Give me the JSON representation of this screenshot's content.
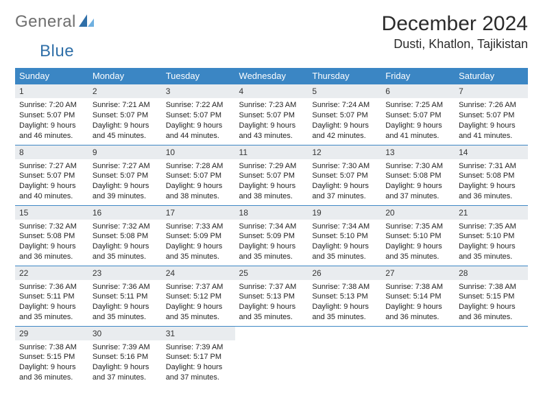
{
  "brand": {
    "word1": "General",
    "word2": "Blue"
  },
  "title": "December 2024",
  "location": "Dusti, Khatlon, Tajikistan",
  "colors": {
    "header_bg": "#3b86c4",
    "header_text": "#ffffff",
    "daynum_bg": "#e9ecef",
    "rule": "#3b86c4",
    "brand_gray": "#6e6e6e",
    "brand_blue": "#2f6fa8"
  },
  "typography": {
    "title_fontsize": 30,
    "location_fontsize": 18,
    "dayheader_fontsize": 13,
    "daynum_fontsize": 12,
    "cell_fontsize": 11
  },
  "day_headers": [
    "Sunday",
    "Monday",
    "Tuesday",
    "Wednesday",
    "Thursday",
    "Friday",
    "Saturday"
  ],
  "weeks": [
    [
      {
        "n": "1",
        "sunrise": "7:20 AM",
        "sunset": "5:07 PM",
        "dl": "9 hours and 46 minutes."
      },
      {
        "n": "2",
        "sunrise": "7:21 AM",
        "sunset": "5:07 PM",
        "dl": "9 hours and 45 minutes."
      },
      {
        "n": "3",
        "sunrise": "7:22 AM",
        "sunset": "5:07 PM",
        "dl": "9 hours and 44 minutes."
      },
      {
        "n": "4",
        "sunrise": "7:23 AM",
        "sunset": "5:07 PM",
        "dl": "9 hours and 43 minutes."
      },
      {
        "n": "5",
        "sunrise": "7:24 AM",
        "sunset": "5:07 PM",
        "dl": "9 hours and 42 minutes."
      },
      {
        "n": "6",
        "sunrise": "7:25 AM",
        "sunset": "5:07 PM",
        "dl": "9 hours and 41 minutes."
      },
      {
        "n": "7",
        "sunrise": "7:26 AM",
        "sunset": "5:07 PM",
        "dl": "9 hours and 41 minutes."
      }
    ],
    [
      {
        "n": "8",
        "sunrise": "7:27 AM",
        "sunset": "5:07 PM",
        "dl": "9 hours and 40 minutes."
      },
      {
        "n": "9",
        "sunrise": "7:27 AM",
        "sunset": "5:07 PM",
        "dl": "9 hours and 39 minutes."
      },
      {
        "n": "10",
        "sunrise": "7:28 AM",
        "sunset": "5:07 PM",
        "dl": "9 hours and 38 minutes."
      },
      {
        "n": "11",
        "sunrise": "7:29 AM",
        "sunset": "5:07 PM",
        "dl": "9 hours and 38 minutes."
      },
      {
        "n": "12",
        "sunrise": "7:30 AM",
        "sunset": "5:07 PM",
        "dl": "9 hours and 37 minutes."
      },
      {
        "n": "13",
        "sunrise": "7:30 AM",
        "sunset": "5:08 PM",
        "dl": "9 hours and 37 minutes."
      },
      {
        "n": "14",
        "sunrise": "7:31 AM",
        "sunset": "5:08 PM",
        "dl": "9 hours and 36 minutes."
      }
    ],
    [
      {
        "n": "15",
        "sunrise": "7:32 AM",
        "sunset": "5:08 PM",
        "dl": "9 hours and 36 minutes."
      },
      {
        "n": "16",
        "sunrise": "7:32 AM",
        "sunset": "5:08 PM",
        "dl": "9 hours and 35 minutes."
      },
      {
        "n": "17",
        "sunrise": "7:33 AM",
        "sunset": "5:09 PM",
        "dl": "9 hours and 35 minutes."
      },
      {
        "n": "18",
        "sunrise": "7:34 AM",
        "sunset": "5:09 PM",
        "dl": "9 hours and 35 minutes."
      },
      {
        "n": "19",
        "sunrise": "7:34 AM",
        "sunset": "5:10 PM",
        "dl": "9 hours and 35 minutes."
      },
      {
        "n": "20",
        "sunrise": "7:35 AM",
        "sunset": "5:10 PM",
        "dl": "9 hours and 35 minutes."
      },
      {
        "n": "21",
        "sunrise": "7:35 AM",
        "sunset": "5:10 PM",
        "dl": "9 hours and 35 minutes."
      }
    ],
    [
      {
        "n": "22",
        "sunrise": "7:36 AM",
        "sunset": "5:11 PM",
        "dl": "9 hours and 35 minutes."
      },
      {
        "n": "23",
        "sunrise": "7:36 AM",
        "sunset": "5:11 PM",
        "dl": "9 hours and 35 minutes."
      },
      {
        "n": "24",
        "sunrise": "7:37 AM",
        "sunset": "5:12 PM",
        "dl": "9 hours and 35 minutes."
      },
      {
        "n": "25",
        "sunrise": "7:37 AM",
        "sunset": "5:13 PM",
        "dl": "9 hours and 35 minutes."
      },
      {
        "n": "26",
        "sunrise": "7:38 AM",
        "sunset": "5:13 PM",
        "dl": "9 hours and 35 minutes."
      },
      {
        "n": "27",
        "sunrise": "7:38 AM",
        "sunset": "5:14 PM",
        "dl": "9 hours and 36 minutes."
      },
      {
        "n": "28",
        "sunrise": "7:38 AM",
        "sunset": "5:15 PM",
        "dl": "9 hours and 36 minutes."
      }
    ],
    [
      {
        "n": "29",
        "sunrise": "7:38 AM",
        "sunset": "5:15 PM",
        "dl": "9 hours and 36 minutes."
      },
      {
        "n": "30",
        "sunrise": "7:39 AM",
        "sunset": "5:16 PM",
        "dl": "9 hours and 37 minutes."
      },
      {
        "n": "31",
        "sunrise": "7:39 AM",
        "sunset": "5:17 PM",
        "dl": "9 hours and 37 minutes."
      },
      null,
      null,
      null,
      null
    ]
  ],
  "labels": {
    "sunrise": "Sunrise:",
    "sunset": "Sunset:",
    "daylight": "Daylight:"
  }
}
